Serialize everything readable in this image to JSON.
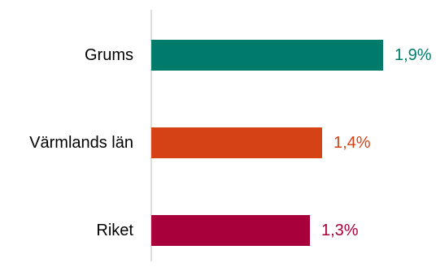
{
  "chart_data": {
    "type": "bar",
    "orientation": "horizontal",
    "categories": [
      "Grums",
      "Värmlands län",
      "Riket"
    ],
    "values": [
      1.9,
      1.4,
      1.3
    ],
    "value_labels": [
      "1,9%",
      "1,4%",
      "1,3%"
    ],
    "colors": [
      "#007A6A",
      "#D54215",
      "#A8003A"
    ],
    "axis_color": "#BFBFBF",
    "xlim": [
      0,
      2.6
    ],
    "grid": false,
    "legend": "none"
  }
}
